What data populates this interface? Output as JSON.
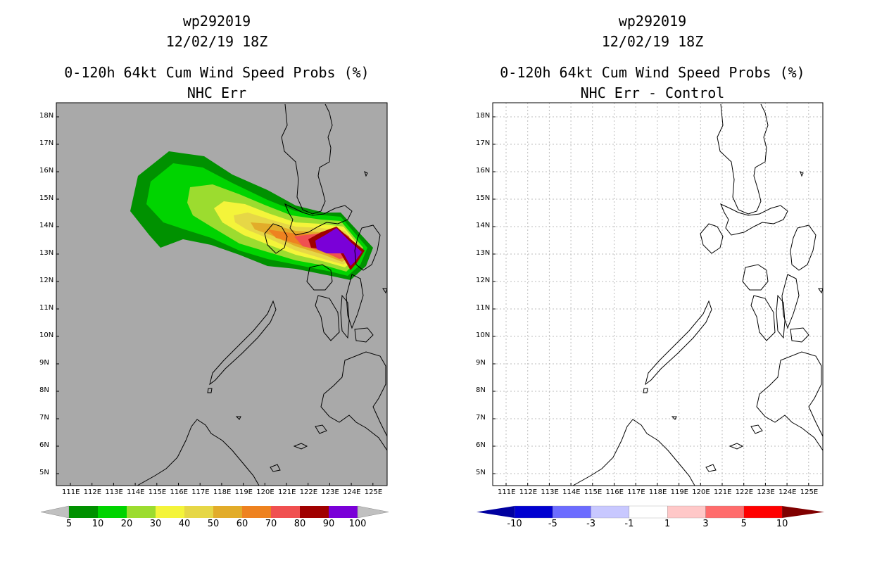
{
  "panels": [
    {
      "id": "left",
      "storm_id": "wp292019",
      "datetime": "12/02/19 18Z",
      "product": "0-120h 64kt Cum Wind Speed Probs (%)",
      "subtitle": "NHC Err",
      "background": "#a9a9a9",
      "colorbar": {
        "labels": [
          "5",
          "10",
          "20",
          "30",
          "40",
          "50",
          "60",
          "70",
          "80",
          "90",
          "100"
        ],
        "colors": [
          "#009100",
          "#00d400",
          "#9cdc2f",
          "#f4f43a",
          "#e6d746",
          "#e2ac2a",
          "#ee8220",
          "#f05050",
          "#a00000",
          "#7a00d8"
        ],
        "end_color": "#c0c0c0"
      }
    },
    {
      "id": "right",
      "storm_id": "wp292019",
      "datetime": "12/02/19 18Z",
      "product": "0-120h 64kt Cum Wind Speed Probs (%)",
      "subtitle": "NHC Err - Control",
      "background": "#ffffff",
      "colorbar": {
        "labels": [
          "-10",
          "-5",
          "-3",
          "-1",
          "1",
          "3",
          "5",
          "10"
        ],
        "colors": [
          "#0000d0",
          "#6c6cff",
          "#c8c8ff",
          "#ffffff",
          "#ffc8c8",
          "#ff6c6c",
          "#ff0000"
        ],
        "low_end_color": "#0000a0",
        "high_end_color": "#800000"
      }
    }
  ],
  "axes": {
    "lon_labels": [
      "111E",
      "112E",
      "113E",
      "114E",
      "115E",
      "116E",
      "117E",
      "118E",
      "119E",
      "120E",
      "121E",
      "122E",
      "123E",
      "124E",
      "125E"
    ],
    "lat_labels": [
      "18N",
      "17N",
      "16N",
      "15N",
      "14N",
      "13N",
      "12N",
      "11N",
      "10N",
      "9N",
      "8N",
      "7N",
      "6N",
      "5N"
    ]
  },
  "map_data": {
    "region": "Philippines",
    "lon_range": [
      110.5,
      125
    ],
    "lat_range": [
      4.5,
      18.5
    ]
  }
}
